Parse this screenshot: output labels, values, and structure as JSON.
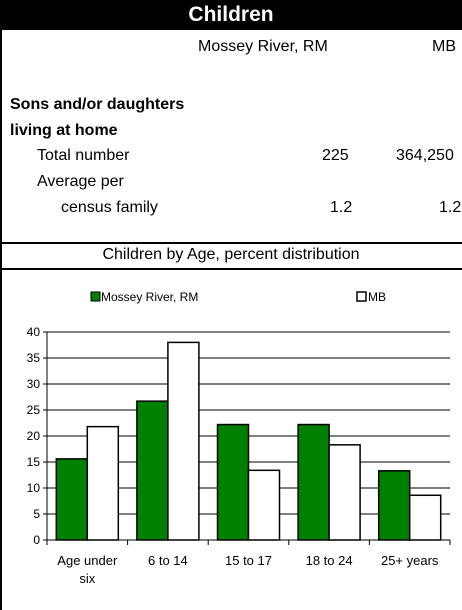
{
  "title": "Children",
  "columns": {
    "area": "Mossey River, RM",
    "province": "MB"
  },
  "section": {
    "line1": "Sons and/or daughters",
    "line2": "living at home"
  },
  "rows": [
    {
      "label": "Total number",
      "area_value": "225",
      "province_value": "364,250"
    },
    {
      "label1": "Average per",
      "label2": "census family",
      "area_value": "1.2",
      "province_value": "1.2"
    }
  ],
  "chart_data": {
    "type": "bar",
    "title": "Children by Age, percent distribution",
    "categories": [
      "Age under six",
      "6 to 14",
      "15 to 17",
      "18 to 24",
      "25+ years"
    ],
    "category_lines": [
      [
        "Age under",
        "six"
      ],
      [
        "6 to 14"
      ],
      [
        "15 to 17"
      ],
      [
        "18 to 24"
      ],
      [
        "25+ years"
      ]
    ],
    "series": [
      {
        "name": "Mossey River, RM",
        "values": [
          15.6,
          26.7,
          22.2,
          22.2,
          13.3
        ],
        "color": "#008000"
      },
      {
        "name": "MB",
        "values": [
          21.8,
          38.0,
          13.4,
          18.3,
          8.6
        ],
        "color": "#ffffff"
      }
    ],
    "ylim": [
      0,
      40
    ],
    "yticks": [
      0,
      5,
      10,
      15,
      20,
      25,
      30,
      35,
      40
    ],
    "grid": true,
    "legend": "top"
  }
}
